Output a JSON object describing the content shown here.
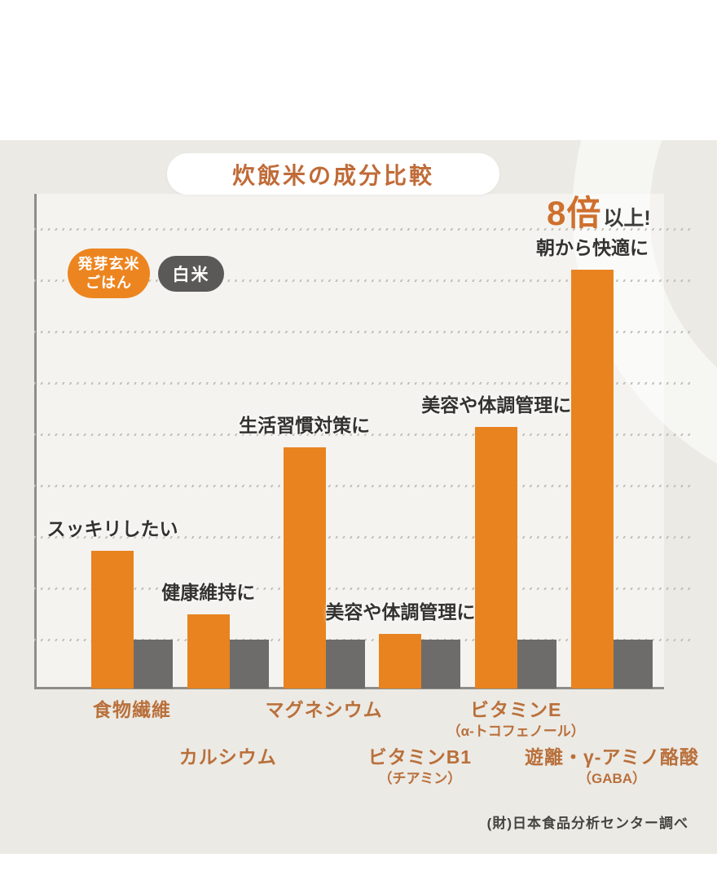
{
  "header": {
    "title": "炊飯米の成分比較"
  },
  "callout": {
    "big": "8倍",
    "suffix": "以上!"
  },
  "legend": {
    "genmai_line1": "発芽玄米",
    "genmai_line2": "ごはん",
    "hakumai": "白米"
  },
  "footer": {
    "source": "(財)日本食品分析センター調べ"
  },
  "colors": {
    "genmai_bar": "#e8831f",
    "hakumai_bar": "#6d6c6a",
    "background": "#eceae5",
    "accent_text": "#c06b38"
  },
  "chart_data": {
    "type": "bar",
    "title": "炊飯米の成分比較",
    "categories": [
      "食物繊維",
      "カルシウム",
      "マグネシウム",
      "ビタミンB1",
      "ビタミンE",
      "遊離・γ-アミノ酪酸"
    ],
    "category_subs": [
      "",
      "",
      "",
      "（チアミン）",
      "（α-トコフェノール）",
      "（GABA）"
    ],
    "series": [
      {
        "name": "発芽玄米ごはん",
        "color": "#e8831f",
        "values": [
          2.8,
          1.5,
          4.9,
          1.1,
          5.3,
          8.5
        ]
      },
      {
        "name": "白米",
        "color": "#6d6c6a",
        "values": [
          1,
          1,
          1,
          1,
          1,
          1
        ]
      }
    ],
    "annotations": [
      "スッキリしたい",
      "健康維持に",
      "生活習慣対策に",
      "美容や体調管理に",
      "美容や体調管理に",
      "朝から快適に"
    ],
    "callout": "8倍以上!",
    "value_basis": "ratio vs 白米 = 1 (estimated from gridline spacing)",
    "ylim": [
      0,
      10
    ],
    "grid": true,
    "legend_position": "top-left",
    "source": "(財)日本食品分析センター調べ"
  }
}
